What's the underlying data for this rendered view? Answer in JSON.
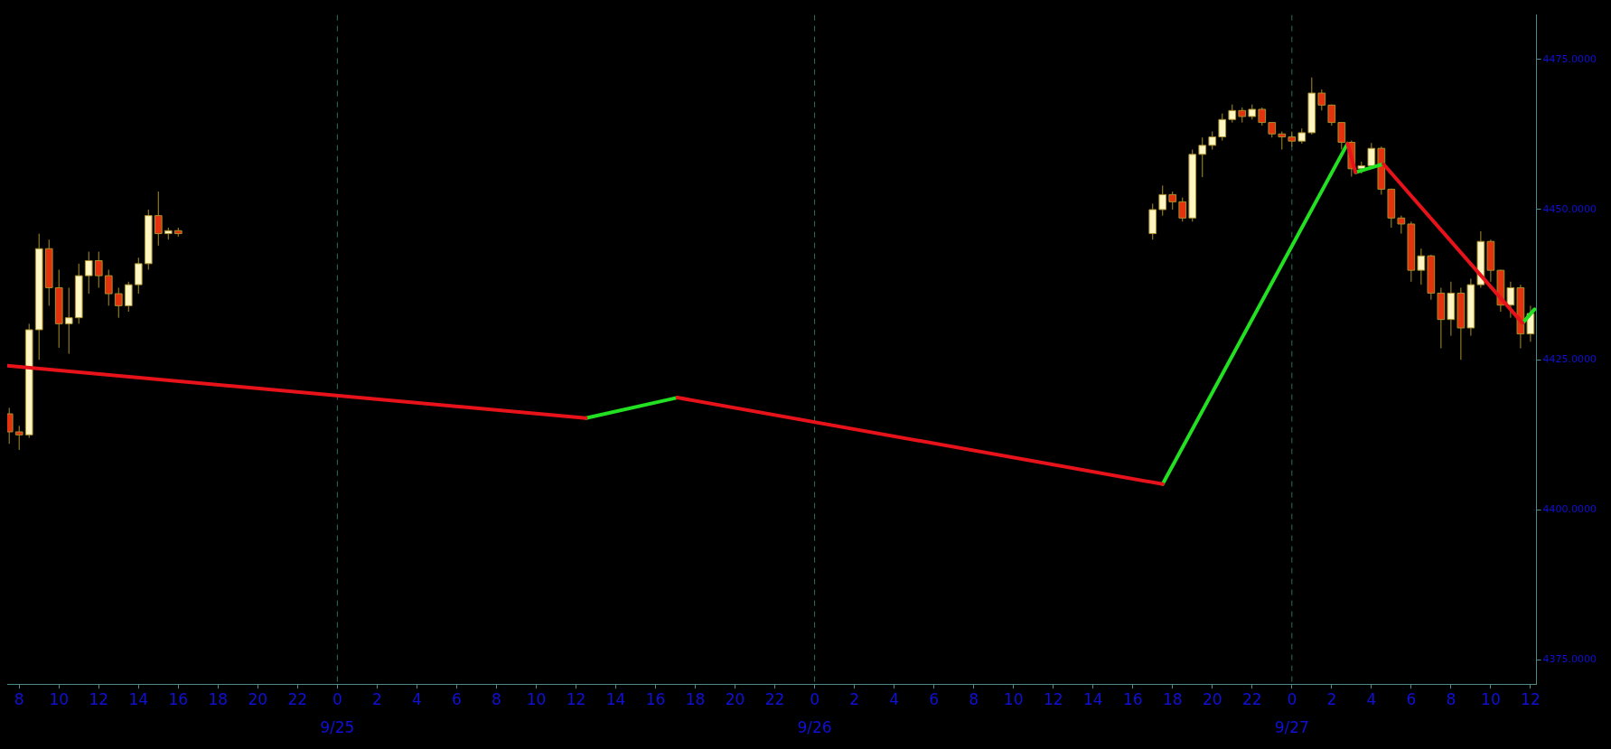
{
  "chart_data": {
    "type": "candlestick",
    "xlim": [
      "--09-24T07:24",
      "--09-27T12:18"
    ],
    "xticks": [
      {
        "value": "--09-24T08:00",
        "label": "8"
      },
      {
        "value": "--09-24T10:00",
        "label": "10"
      },
      {
        "value": "--09-24T12:00",
        "label": "12"
      },
      {
        "value": "--09-24T14:00",
        "label": "14"
      },
      {
        "value": "--09-24T16:00",
        "label": "16"
      },
      {
        "value": "--09-24T18:00",
        "label": "18"
      },
      {
        "value": "--09-24T20:00",
        "label": "20"
      },
      {
        "value": "--09-24T22:00",
        "label": "22"
      },
      {
        "value": "--09-25T00:00",
        "label": "0"
      },
      {
        "value": "--09-25T02:00",
        "label": "2"
      },
      {
        "value": "--09-25T04:00",
        "label": "4"
      },
      {
        "value": "--09-25T06:00",
        "label": "6"
      },
      {
        "value": "--09-25T08:00",
        "label": "8"
      },
      {
        "value": "--09-25T10:00",
        "label": "10"
      },
      {
        "value": "--09-25T12:00",
        "label": "12"
      },
      {
        "value": "--09-25T14:00",
        "label": "14"
      },
      {
        "value": "--09-25T16:00",
        "label": "16"
      },
      {
        "value": "--09-25T18:00",
        "label": "18"
      },
      {
        "value": "--09-25T20:00",
        "label": "20"
      },
      {
        "value": "--09-25T22:00",
        "label": "22"
      },
      {
        "value": "--09-26T00:00",
        "label": "0"
      },
      {
        "value": "--09-26T02:00",
        "label": "2"
      },
      {
        "value": "--09-26T04:00",
        "label": "4"
      },
      {
        "value": "--09-26T06:00",
        "label": "6"
      },
      {
        "value": "--09-26T08:00",
        "label": "8"
      },
      {
        "value": "--09-26T10:00",
        "label": "10"
      },
      {
        "value": "--09-26T12:00",
        "label": "12"
      },
      {
        "value": "--09-26T14:00",
        "label": "14"
      },
      {
        "value": "--09-26T16:00",
        "label": "16"
      },
      {
        "value": "--09-26T18:00",
        "label": "18"
      },
      {
        "value": "--09-26T20:00",
        "label": "20"
      },
      {
        "value": "--09-26T22:00",
        "label": "22"
      },
      {
        "value": "--09-27T00:00",
        "label": "0"
      },
      {
        "value": "--09-27T02:00",
        "label": "2"
      },
      {
        "value": "--09-27T04:00",
        "label": "4"
      },
      {
        "value": "--09-27T06:00",
        "label": "6"
      },
      {
        "value": "--09-27T08:00",
        "label": "8"
      },
      {
        "value": "--09-27T10:00",
        "label": "10"
      },
      {
        "value": "--09-27T12:00",
        "label": "12"
      }
    ],
    "x2lim": [
      "--09-24T07:24",
      "--09-27T12:18"
    ],
    "x2ticks": [
      {
        "value": "--09-25",
        "label": "9/25"
      },
      {
        "value": "--09-26",
        "label": "9/26"
      },
      {
        "value": "--09-27",
        "label": "9/27"
      }
    ],
    "ylim": [
      4371,
      4482.4
    ],
    "yticks": [
      {
        "value": 4375,
        "label": "4375.0000"
      },
      {
        "value": 4400,
        "label": "4400.0000"
      },
      {
        "value": 4425,
        "label": "4425.0000"
      },
      {
        "value": 4450,
        "label": "4450.0000"
      },
      {
        "value": 4475,
        "label": "4475.0000"
      }
    ],
    "ref_lines": [
      {
        "axis": "x",
        "value": "--09-25",
        "color": "#2e6e5e",
        "line_style": "dashed"
      },
      {
        "axis": "x",
        "value": "--09-26",
        "color": "#2e6e5e",
        "line_style": "dashed"
      },
      {
        "axis": "x",
        "value": "--09-27",
        "color": "#2e6e5e",
        "line_style": "dashed"
      }
    ],
    "marker": "none",
    "line_style": "solid",
    "legend": false,
    "grid": false,
    "series": [
      {
        "x": [
          "--09-24T07:30",
          "--09-24T08:00",
          "--09-24T08:30",
          "--09-24T09:00",
          "--09-24T09:30",
          "--09-24T10:00",
          "--09-24T10:30",
          "--09-24T11:00",
          "--09-24T11:30",
          "--09-24T12:00",
          "--09-24T12:30",
          "--09-24T13:00",
          "--09-24T13:30",
          "--09-24T14:00",
          "--09-24T14:30",
          "--09-24T15:00",
          "--09-24T15:30",
          "--09-24T16:00",
          "--09-26T17:00",
          "--09-26T17:30",
          "--09-26T18:00",
          "--09-26T18:30",
          "--09-26T19:00",
          "--09-26T19:30",
          "--09-26T20:00",
          "--09-26T20:30",
          "--09-26T21:00",
          "--09-26T21:30",
          "--09-26T22:00",
          "--09-26T22:30",
          "--09-26T23:00",
          "--09-26T23:30",
          "--09-27T00:00",
          "--09-27T00:30",
          "--09-27T01:00",
          "--09-27T01:30",
          "--09-27T02:00",
          "--09-27T02:30",
          "--09-27T03:00",
          "--09-27T03:30",
          "--09-27T04:00",
          "--09-27T04:30",
          "--09-27T05:00",
          "--09-27T05:30",
          "--09-27T06:00",
          "--09-27T06:30",
          "--09-27T07:00",
          "--09-27T07:30",
          "--09-27T08:00",
          "--09-27T08:30",
          "--09-27T09:00",
          "--09-27T09:30",
          "--09-27T10:00",
          "--09-27T10:30",
          "--09-27T11:00",
          "--09-27T11:30",
          "--09-27T12:00"
        ],
        "ohlc": [
          [
            4416,
            4417,
            4411,
            4413
          ],
          [
            4413,
            4414,
            4410,
            4412.5
          ],
          [
            4412.5,
            4431,
            4412,
            4430
          ],
          [
            4430,
            4446,
            4425,
            4443.5
          ],
          [
            4443.5,
            4445,
            4434,
            4437
          ],
          [
            4437,
            4440,
            4427,
            4431
          ],
          [
            4431,
            4437,
            4426,
            4432
          ],
          [
            4432,
            4441,
            4431,
            4439
          ],
          [
            4439,
            4443,
            4436,
            4441.5
          ],
          [
            4441.5,
            4443,
            4437,
            4439
          ],
          [
            4439,
            4440,
            4434,
            4436
          ],
          [
            4436,
            4437,
            4432,
            4434
          ],
          [
            4434,
            4438,
            4433,
            4437.5
          ],
          [
            4437.5,
            4442,
            4436,
            4441
          ],
          [
            4441,
            4450,
            4440,
            4449
          ],
          [
            4449,
            4453,
            4444,
            4446
          ],
          [
            4446,
            4447,
            4445,
            4446.5
          ],
          [
            4446.5,
            4447,
            4445.5,
            4446
          ],
          [
            4446,
            4451,
            4445,
            4450
          ],
          [
            4450,
            4454,
            4449,
            4452.5
          ],
          [
            4452.5,
            4453,
            4450,
            4451.3
          ],
          [
            4451.3,
            4452,
            4448,
            4448.6
          ],
          [
            4448.6,
            4460,
            4448,
            4459.2
          ],
          [
            4459.2,
            4462,
            4455.4,
            4460.7
          ],
          [
            4460.7,
            4463,
            4460,
            4462.1
          ],
          [
            4462.1,
            4466,
            4461.5,
            4465
          ],
          [
            4465,
            4467.5,
            4464.5,
            4466.5
          ],
          [
            4466.5,
            4467,
            4464.5,
            4465.5
          ],
          [
            4465.5,
            4467.5,
            4465,
            4466.7
          ],
          [
            4466.7,
            4467,
            4464,
            4464.5
          ],
          [
            4464.5,
            4464.5,
            4462,
            4462.6
          ],
          [
            4462.6,
            4463,
            4460,
            4462.1
          ],
          [
            4462.1,
            4463,
            4460.5,
            4461.4
          ],
          [
            4461.4,
            4463.5,
            4461,
            4462.8
          ],
          [
            4462.8,
            4472,
            4462.5,
            4469.4
          ],
          [
            4469.4,
            4470,
            4466.5,
            4467.4
          ],
          [
            4467.4,
            4467.5,
            4464,
            4464.5
          ],
          [
            4464.5,
            4464.5,
            4460,
            4461.2
          ],
          [
            4461.2,
            4461.5,
            4455.5,
            4456.8
          ],
          [
            4456.8,
            4458,
            4456,
            4457.3
          ],
          [
            4457.3,
            4461.1,
            4457,
            4460.2
          ],
          [
            4460.2,
            4460.5,
            4452.5,
            4453.4
          ],
          [
            4453.4,
            4453.5,
            4447,
            4448.6
          ],
          [
            4448.6,
            4449,
            4446,
            4447.6
          ],
          [
            4447.6,
            4448,
            4438,
            4439.9
          ],
          [
            4439.9,
            4443.5,
            4437.5,
            4442.3
          ],
          [
            4442.3,
            4442.5,
            4435,
            4436.1
          ],
          [
            4436.1,
            4437,
            4426.9,
            4431.7
          ],
          [
            4431.7,
            4438,
            4429,
            4436.1
          ],
          [
            4436.1,
            4437,
            4425,
            4430.3
          ],
          [
            4430.3,
            4438.5,
            4429,
            4437.5
          ],
          [
            4437.5,
            4446.4,
            4437,
            4444.7
          ],
          [
            4444.7,
            4445,
            4438,
            4439.9
          ],
          [
            4439.9,
            4440,
            4433,
            4434.1
          ],
          [
            4434.1,
            4438,
            4432,
            4437
          ],
          [
            4437,
            4437.5,
            4426.9,
            4429.3
          ],
          [
            4429.3,
            4434,
            4428,
            4432.7
          ]
        ],
        "colors": [
          "#e2320e",
          "#e2320e",
          "#fff6c4",
          "#fff6c4",
          "#e2320e",
          "#e2320e",
          "#fff6c4",
          "#fff6c4",
          "#fff6c4",
          "#e2320e",
          "#e2320e",
          "#e2320e",
          "#fff6c4",
          "#fff6c4",
          "#fff6c4",
          "#e2320e",
          "#fff6c4",
          "#e2320e",
          "#fff6c4",
          "#fff6c4",
          "#e2320e",
          "#e2320e",
          "#fff6c4",
          "#fff6c4",
          "#fff6c4",
          "#fff6c4",
          "#fff6c4",
          "#e2320e",
          "#fff6c4",
          "#e2320e",
          "#e2320e",
          "#e2320e",
          "#e2320e",
          "#fff6c4",
          "#fff6c4",
          "#e2320e",
          "#e2320e",
          "#e2320e",
          "#e2320e",
          "#fff6c4",
          "#fff6c4",
          "#e2320e",
          "#e2320e",
          "#e2320e",
          "#e2320e",
          "#fff6c4",
          "#e2320e",
          "#e2320e",
          "#fff6c4",
          "#e2320e",
          "#fff6c4",
          "#fff6c4",
          "#e2320e",
          "#e2320e",
          "#fff6c4",
          "#e2320e",
          "#fff6c4"
        ]
      },
      {
        "type": "line",
        "color": "#e8121a",
        "x": [
          "--09-24T07:24",
          "--09-25T12:30",
          "--09-25T14:48",
          "--09-25T17:06",
          "--09-26T17:30",
          "--09-26T22:00",
          "--09-27T02:48",
          "--09-27T03:12",
          "--09-27T03:54",
          "--09-27T04:36",
          "--09-27T11:36"
        ],
        "values": [
          4424.0,
          4415.3,
          null,
          4418.7,
          4404.3,
          null,
          4461.0,
          4456.2,
          null,
          4457.6,
          4431.1
        ]
      },
      {
        "type": "line",
        "color": "#22e022",
        "x": [
          "--09-25T12:30",
          "--09-25T17:06",
          "--09-26T02:00",
          "--09-26T17:30",
          "--09-27T02:48",
          "--09-27T03:00",
          "--09-27T03:12",
          "--09-27T04:36",
          "--09-27T08:00",
          "--09-27T11:36",
          "--09-27T12:12"
        ],
        "values": [
          4415.3,
          4418.7,
          null,
          4404.3,
          4461.0,
          null,
          4456.2,
          4457.6,
          null,
          4431.1,
          4433.4
        ]
      }
    ]
  }
}
